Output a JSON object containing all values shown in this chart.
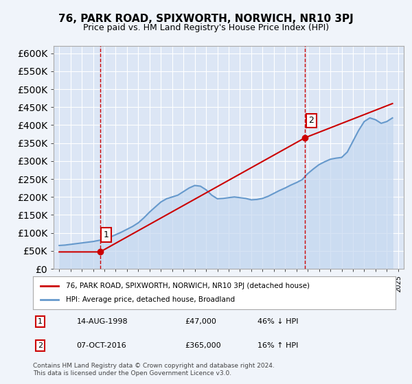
{
  "title": "76, PARK ROAD, SPIXWORTH, NORWICH, NR10 3PJ",
  "subtitle": "Price paid vs. HM Land Registry's House Price Index (HPI)",
  "ylabel": "",
  "ylim": [
    0,
    620000
  ],
  "yticks": [
    0,
    50000,
    100000,
    150000,
    200000,
    250000,
    300000,
    350000,
    400000,
    450000,
    500000,
    550000,
    600000
  ],
  "xlim_left": 1994.5,
  "xlim_right": 2025.5,
  "background_color": "#e8eef7",
  "plot_bg": "#dce6f5",
  "sale1_year": 1998.62,
  "sale1_price": 47000,
  "sale2_year": 2016.77,
  "sale2_price": 365000,
  "sale1_label": "1",
  "sale2_label": "2",
  "legend_property": "76, PARK ROAD, SPIXWORTH, NORWICH, NR10 3PJ (detached house)",
  "legend_hpi": "HPI: Average price, detached house, Broadland",
  "table_row1": [
    "1",
    "14-AUG-1998",
    "£47,000",
    "46% ↓ HPI"
  ],
  "table_row2": [
    "2",
    "07-OCT-2016",
    "£365,000",
    "16% ↑ HPI"
  ],
  "footnote": "Contains HM Land Registry data © Crown copyright and database right 2024.\nThis data is licensed under the Open Government Licence v3.0.",
  "property_line_color": "#cc0000",
  "hpi_line_color": "#6699cc",
  "hpi_fill_color": "#c5d8f0",
  "grid_color": "#ffffff",
  "vline_color": "#cc0000",
  "hpi_data_years": [
    1995,
    1995.5,
    1996,
    1996.5,
    1997,
    1997.5,
    1998,
    1998.5,
    1999,
    1999.5,
    2000,
    2000.5,
    2001,
    2001.5,
    2002,
    2002.5,
    2003,
    2003.5,
    2004,
    2004.5,
    2005,
    2005.5,
    2006,
    2006.5,
    2007,
    2007.5,
    2008,
    2008.5,
    2009,
    2009.5,
    2010,
    2010.5,
    2011,
    2011.5,
    2012,
    2012.5,
    2013,
    2013.5,
    2014,
    2014.5,
    2015,
    2015.5,
    2016,
    2016.5,
    2017,
    2017.5,
    2018,
    2018.5,
    2019,
    2019.5,
    2020,
    2020.5,
    2021,
    2021.5,
    2022,
    2022.5,
    2023,
    2023.5,
    2024,
    2024.5
  ],
  "hpi_data_values": [
    65000,
    66000,
    68000,
    70000,
    72000,
    74000,
    76000,
    79000,
    83000,
    88000,
    95000,
    102000,
    110000,
    118000,
    128000,
    142000,
    158000,
    172000,
    186000,
    195000,
    200000,
    205000,
    215000,
    225000,
    232000,
    230000,
    220000,
    205000,
    195000,
    196000,
    198000,
    200000,
    198000,
    196000,
    192000,
    193000,
    196000,
    202000,
    210000,
    218000,
    225000,
    233000,
    240000,
    248000,
    265000,
    278000,
    290000,
    298000,
    305000,
    308000,
    310000,
    325000,
    355000,
    385000,
    410000,
    420000,
    415000,
    405000,
    410000,
    420000
  ],
  "property_data_years": [
    1995,
    1998.62,
    2016.77,
    2024.5
  ],
  "property_data_values": [
    47000,
    47000,
    365000,
    460000
  ]
}
